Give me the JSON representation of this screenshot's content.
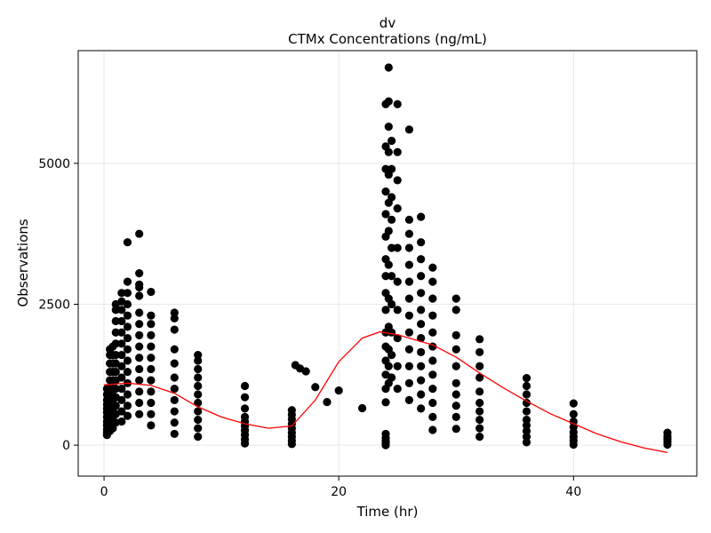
{
  "chart_data": {
    "type": "scatter",
    "title": "dv",
    "subtitle": "CTMx Concentrations (ng/mL)",
    "xlabel": "Time (hr)",
    "ylabel": "Observations",
    "xlim": [
      -2.2,
      50.5
    ],
    "ylim": [
      -550,
      7000
    ],
    "xticks": [
      0,
      20,
      40
    ],
    "yticks": [
      0,
      2500,
      5000
    ],
    "xtick_labels": [
      "0",
      "20",
      "40"
    ],
    "ytick_labels": [
      "0",
      "2500",
      "5000"
    ],
    "grid": true,
    "legend": "none",
    "colors": {
      "points": "#000000",
      "fit_line": "#ff0000",
      "grid": "#e6e6e6"
    },
    "points": [
      {
        "x": 0.25,
        "y": [
          180,
          230,
          280,
          350,
          420,
          500,
          580,
          650,
          720,
          800,
          900,
          1000
        ]
      },
      {
        "x": 0.5,
        "y": [
          250,
          330,
          420,
          520,
          640,
          760,
          880,
          1000,
          1150,
          1300,
          1450,
          1600,
          1700
        ]
      },
      {
        "x": 0.75,
        "y": [
          300,
          400,
          500,
          620,
          750,
          880,
          1000,
          1150,
          1300,
          1450,
          1600,
          1750
        ]
      },
      {
        "x": 1,
        "y": [
          400,
          550,
          700,
          850,
          1000,
          1150,
          1300,
          1450,
          1600,
          1800,
          2000,
          2200,
          2400,
          2500
        ]
      },
      {
        "x": 1.5,
        "y": [
          420,
          600,
          800,
          1000,
          1200,
          1400,
          1600,
          1800,
          2000,
          2200,
          2400,
          2550,
          2700
        ]
      },
      {
        "x": 2,
        "y": [
          520,
          700,
          900,
          1100,
          1300,
          1500,
          1700,
          1900,
          2100,
          2300,
          2500,
          2700,
          2900,
          3600
        ]
      },
      {
        "x": 3,
        "y": [
          550,
          750,
          950,
          1150,
          1350,
          1550,
          1750,
          1950,
          2150,
          2350,
          2650,
          2800,
          2850,
          3050,
          3750
        ]
      },
      {
        "x": 4,
        "y": [
          350,
          550,
          750,
          950,
          1150,
          1350,
          1550,
          1750,
          1950,
          2150,
          2300,
          2720
        ]
      },
      {
        "x": 6,
        "y": [
          200,
          400,
          600,
          800,
          1000,
          1200,
          1450,
          1700,
          2050,
          2250,
          2350
        ]
      },
      {
        "x": 8,
        "y": [
          150,
          300,
          450,
          600,
          750,
          900,
          1050,
          1200,
          1350,
          1500,
          1600
        ]
      },
      {
        "x": 12,
        "y": [
          30,
          100,
          180,
          260,
          340,
          420,
          500,
          650,
          850,
          1050
        ]
      },
      {
        "x": 16,
        "y": [
          20,
          80,
          150,
          220,
          300,
          380,
          460,
          540,
          620
        ]
      },
      {
        "x": 16.3,
        "y": [
          1420
        ]
      },
      {
        "x": 16.7,
        "y": [
          1360
        ]
      },
      {
        "x": 17.2,
        "y": [
          1310
        ]
      },
      {
        "x": 18,
        "y": [
          1030
        ]
      },
      {
        "x": 19,
        "y": [
          765
        ]
      },
      {
        "x": 20,
        "y": [
          970
        ]
      },
      {
        "x": 22,
        "y": [
          656
        ]
      },
      {
        "x": 24,
        "y": [
          0,
          40,
          80,
          130,
          200,
          760,
          1000,
          1250,
          1500,
          1750,
          2000,
          2400,
          2700,
          3000,
          3300,
          3700,
          4100,
          4500,
          4900,
          5300,
          6050
        ]
      },
      {
        "x": 24.25,
        "y": [
          1100,
          1400,
          1700,
          2100,
          2600,
          3200,
          3800,
          4300,
          4800,
          5200,
          5650,
          6100,
          6700
        ]
      },
      {
        "x": 24.5,
        "y": [
          1200,
          1600,
          2000,
          2500,
          3000,
          3500,
          4000,
          4400,
          4900,
          5400
        ]
      },
      {
        "x": 25,
        "y": [
          1000,
          1400,
          1900,
          2400,
          2900,
          3500,
          4200,
          4700,
          5200,
          6050
        ]
      },
      {
        "x": 26,
        "y": [
          800,
          1100,
          1400,
          1700,
          2000,
          2300,
          2600,
          2900,
          3200,
          3500,
          3750,
          4000,
          5600
        ]
      },
      {
        "x": 27,
        "y": [
          650,
          900,
          1150,
          1400,
          1650,
          1900,
          2150,
          2400,
          2700,
          3000,
          3300,
          3600,
          4050
        ]
      },
      {
        "x": 28,
        "y": [
          270,
          500,
          750,
          1000,
          1250,
          1500,
          1750,
          2000,
          2300,
          2600,
          2900,
          3150
        ]
      },
      {
        "x": 30,
        "y": [
          290,
          500,
          700,
          900,
          1100,
          1400,
          1700,
          1950,
          2400,
          2600
        ]
      },
      {
        "x": 32,
        "y": [
          150,
          300,
          450,
          600,
          750,
          950,
          1200,
          1400,
          1650,
          1880
        ]
      },
      {
        "x": 36,
        "y": [
          50,
          150,
          250,
          350,
          450,
          600,
          750,
          900,
          1050,
          1190
        ]
      },
      {
        "x": 40,
        "y": [
          10,
          80,
          150,
          230,
          320,
          420,
          550,
          740
        ]
      },
      {
        "x": 48,
        "y": [
          10,
          60,
          110,
          160,
          220
        ]
      }
    ],
    "fit_line": {
      "x": [
        0,
        2,
        4,
        6,
        8,
        10,
        12,
        14,
        16,
        18,
        20,
        22,
        23.5,
        25,
        28,
        30,
        32,
        34,
        36,
        38,
        40,
        42,
        44,
        46,
        48
      ],
      "y": [
        1070,
        1100,
        1060,
        920,
        680,
        500,
        380,
        300,
        340,
        800,
        1480,
        1900,
        2010,
        1960,
        1780,
        1560,
        1280,
        1020,
        780,
        560,
        380,
        200,
        60,
        -50,
        -130
      ]
    }
  }
}
